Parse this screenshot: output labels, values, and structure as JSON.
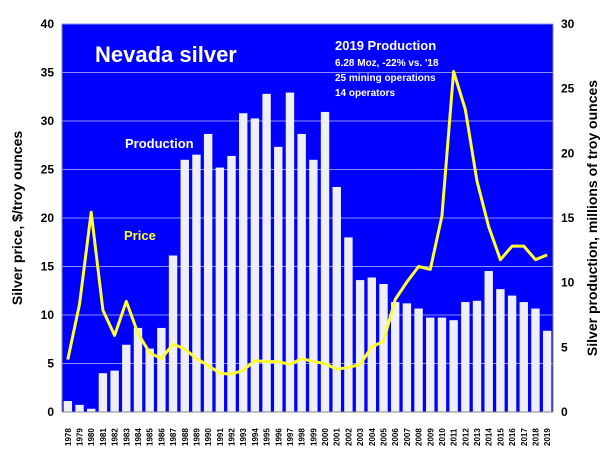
{
  "chart_data": {
    "type": "bar+line",
    "title": "Nevada silver",
    "annotation": {
      "heading": "2019 Production",
      "lines": [
        "6.28 Moz, -22% vs. '18",
        "25 mining operations",
        "14 operators"
      ]
    },
    "series_labels": {
      "production": "Production",
      "price": "Price"
    },
    "ylabel_left": "Silver price, $/troy ounces",
    "ylabel_right": "Silver production, millions of troy ounces",
    "ylim_left": [
      0,
      40
    ],
    "ylim_right": [
      0,
      30
    ],
    "yticks_left": [
      0,
      5,
      10,
      15,
      20,
      25,
      30,
      35,
      40
    ],
    "yticks_right": [
      0,
      5,
      10,
      15,
      20,
      25,
      30
    ],
    "grid": true,
    "x": [
      "1978",
      "1979",
      "1980",
      "1981",
      "1982",
      "1983",
      "1984",
      "1985",
      "1986",
      "1987",
      "1988",
      "1989",
      "1990",
      "1991",
      "1992",
      "1993",
      "1994",
      "1995",
      "1996",
      "1997",
      "1998",
      "1999",
      "2000",
      "2001",
      "2002",
      "2003",
      "2004",
      "2005",
      "2006",
      "2007",
      "2008",
      "2009",
      "2010",
      "2011",
      "2012",
      "2013",
      "2014",
      "2015",
      "2016",
      "2017",
      "2018",
      "2019"
    ],
    "series": [
      {
        "name": "Production",
        "axis": "right",
        "type": "bar",
        "color": "#eef0f5",
        "values": [
          0.85,
          0.55,
          0.25,
          3.0,
          3.2,
          5.2,
          6.5,
          4.9,
          6.5,
          12.1,
          19.5,
          19.9,
          21.5,
          18.9,
          19.8,
          23.1,
          22.7,
          24.6,
          20.5,
          24.7,
          21.5,
          19.5,
          23.2,
          17.4,
          13.5,
          10.2,
          10.4,
          9.9,
          8.5,
          8.4,
          8.0,
          7.3,
          7.3,
          7.1,
          8.5,
          8.6,
          10.9,
          9.5,
          9.0,
          8.5,
          8.0,
          6.28
        ]
      },
      {
        "name": "Price",
        "axis": "left",
        "type": "line",
        "color": "#ffff33",
        "values": [
          5.4,
          11.1,
          20.6,
          10.5,
          7.9,
          11.4,
          8.1,
          6.1,
          5.5,
          7.0,
          6.5,
          5.5,
          4.8,
          4.0,
          3.9,
          4.3,
          5.3,
          5.2,
          5.2,
          4.9,
          5.5,
          5.2,
          5.0,
          4.4,
          4.6,
          4.9,
          6.7,
          7.3,
          11.6,
          13.4,
          15.0,
          14.7,
          20.2,
          35.1,
          31.2,
          23.8,
          19.1,
          15.7,
          17.1,
          17.1,
          15.7,
          16.2
        ]
      }
    ],
    "plot_bg": "#0000ff"
  }
}
